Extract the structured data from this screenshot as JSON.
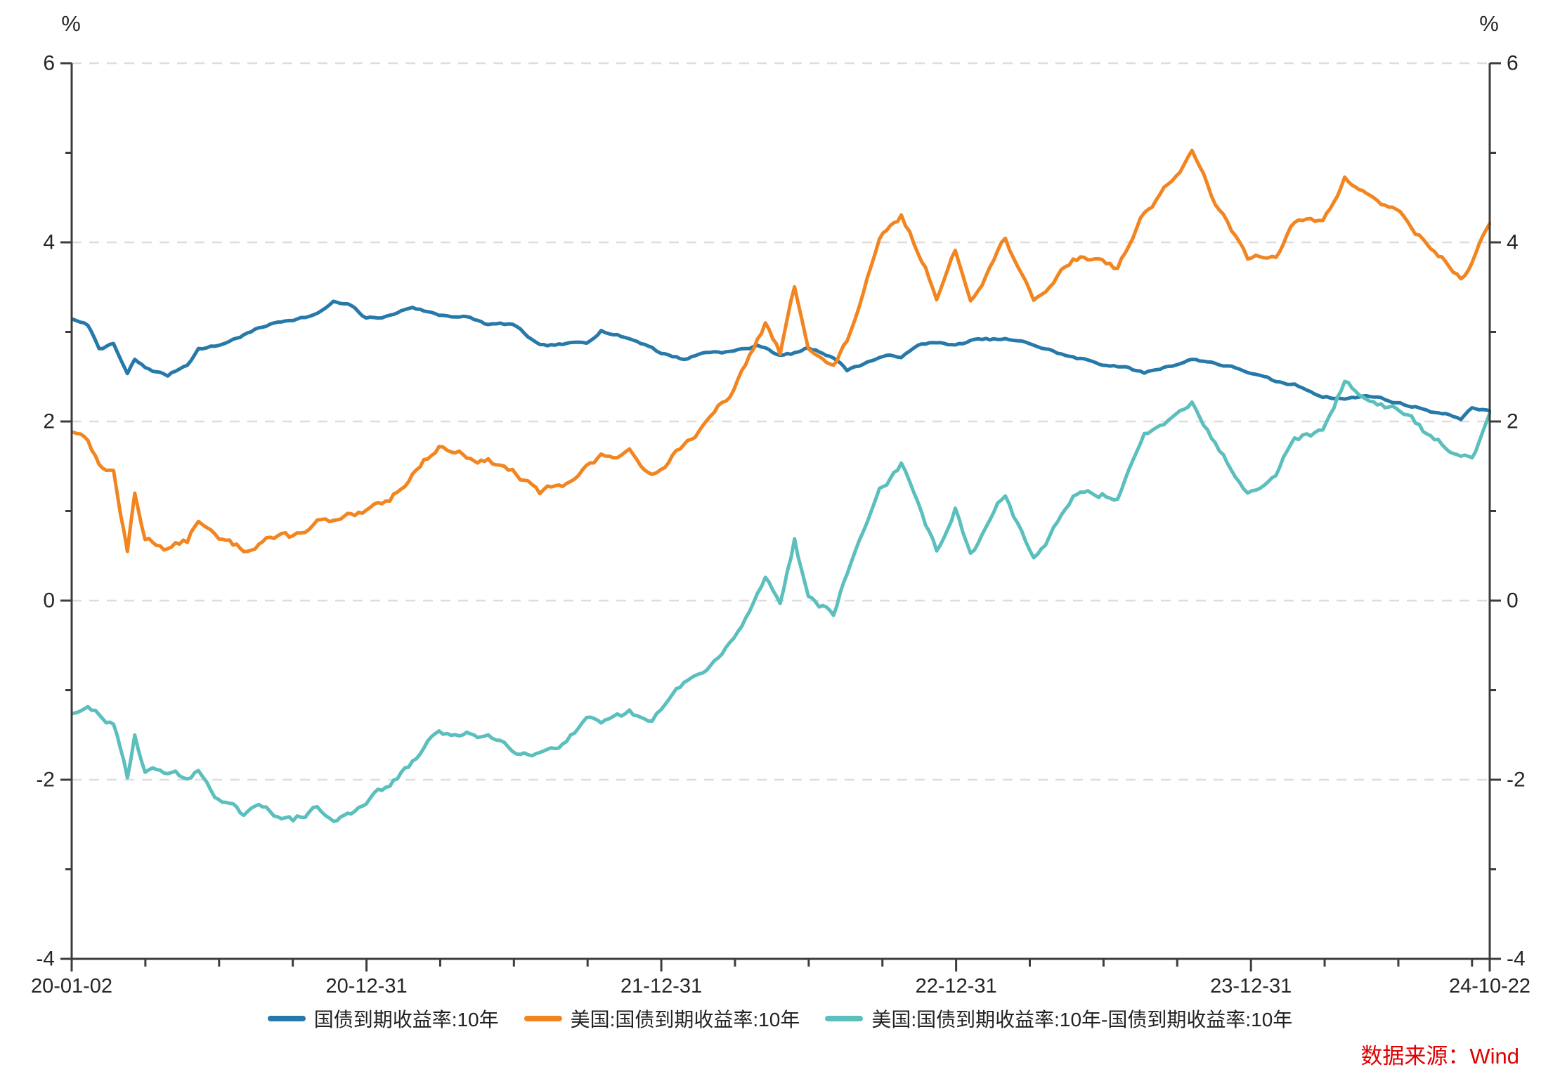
{
  "chart_data": {
    "type": "line",
    "title": "",
    "unit_label_left": "%",
    "unit_label_right": "%",
    "grid": "horizontal-dashed",
    "legend_position": "bottom-center",
    "x_axis": {
      "tick_labels": [
        "20-01-02",
        "20-12-31",
        "21-12-31",
        "22-12-31",
        "23-12-31",
        "24-10-22"
      ],
      "major_t": [
        0,
        1,
        2,
        3,
        4,
        4.81
      ],
      "minor_step_t": 0.25,
      "t_end": 4.81
    },
    "y_axis": {
      "max": 6,
      "min": -4,
      "major_ticks": [
        6,
        4,
        2,
        0,
        -2,
        -4
      ],
      "minor_ticks": [
        5,
        3,
        1,
        -1,
        -3
      ],
      "mirrored_right": true
    },
    "dates": [
      "20-01-02",
      "20-01-20",
      "20-02-03",
      "20-02-21",
      "20-03-09",
      "20-03-18",
      "20-03-31",
      "20-04-28",
      "20-05-22",
      "20-06-05",
      "20-06-30",
      "20-07-31",
      "20-08-28",
      "20-09-30",
      "20-10-30",
      "20-11-19",
      "20-12-11",
      "20-12-31",
      "21-01-29",
      "21-02-26",
      "21-03-31",
      "21-04-30",
      "21-05-31",
      "21-06-30",
      "21-08-03",
      "21-08-31",
      "21-09-30",
      "21-10-18",
      "21-11-22",
      "21-12-20",
      "21-12-31",
      "22-01-28",
      "22-02-25",
      "22-03-31",
      "22-04-29",
      "22-05-09",
      "22-05-27",
      "22-06-14",
      "22-07-01",
      "22-08-01",
      "22-08-18",
      "22-09-27",
      "22-10-24",
      "22-11-14",
      "22-12-07",
      "22-12-30",
      "23-01-18",
      "23-03-02",
      "23-04-06",
      "23-05-25",
      "23-06-30",
      "23-07-19",
      "23-08-21",
      "23-10-19",
      "23-11-17",
      "23-12-27",
      "24-01-31",
      "24-02-23",
      "24-03-29",
      "24-04-25",
      "24-05-31",
      "24-06-28",
      "24-07-31",
      "24-09-16",
      "24-09-30",
      "24-10-22"
    ],
    "t": [
      0.005,
      0.055,
      0.093,
      0.142,
      0.189,
      0.214,
      0.249,
      0.326,
      0.392,
      0.43,
      0.499,
      0.584,
      0.66,
      0.751,
      0.833,
      0.888,
      0.948,
      0.999,
      1.079,
      1.156,
      1.246,
      1.328,
      1.413,
      1.495,
      1.588,
      1.665,
      1.747,
      1.796,
      1.892,
      1.969,
      1.999,
      2.077,
      2.153,
      2.246,
      2.326,
      2.353,
      2.403,
      2.452,
      2.499,
      2.584,
      2.63,
      2.74,
      2.814,
      2.871,
      2.934,
      2.997,
      3.049,
      3.167,
      3.263,
      3.397,
      3.496,
      3.548,
      3.638,
      3.8,
      3.879,
      3.989,
      4.085,
      4.148,
      4.244,
      4.318,
      4.416,
      4.493,
      4.584,
      4.712,
      4.75,
      4.81
    ],
    "series": [
      {
        "name": "国债到期收益率:10年",
        "color": "#2679A9",
        "noise_sigma": 0.013,
        "values": [
          3.14,
          3.07,
          2.82,
          2.86,
          2.52,
          2.68,
          2.59,
          2.51,
          2.64,
          2.82,
          2.85,
          2.97,
          3.07,
          3.15,
          3.2,
          3.33,
          3.28,
          3.14,
          3.18,
          3.28,
          3.19,
          3.18,
          3.08,
          3.08,
          2.83,
          2.85,
          2.87,
          3.03,
          2.93,
          2.84,
          2.77,
          2.7,
          2.78,
          2.79,
          2.84,
          2.83,
          2.74,
          2.76,
          2.82,
          2.73,
          2.58,
          2.72,
          2.73,
          2.84,
          2.89,
          2.84,
          2.9,
          2.91,
          2.85,
          2.71,
          2.64,
          2.63,
          2.54,
          2.7,
          2.66,
          2.56,
          2.43,
          2.4,
          2.29,
          2.26,
          2.29,
          2.21,
          2.15,
          2.04,
          2.15,
          2.12
        ]
      },
      {
        "name": "美国:国债到期收益率:10年",
        "color": "#F28520",
        "noise_sigma": 0.035,
        "values": [
          1.88,
          1.84,
          1.53,
          1.46,
          0.54,
          1.18,
          0.7,
          0.61,
          0.66,
          0.91,
          0.66,
          0.55,
          0.74,
          0.69,
          0.88,
          0.85,
          0.9,
          0.93,
          1.11,
          1.44,
          1.74,
          1.65,
          1.58,
          1.45,
          1.18,
          1.3,
          1.52,
          1.6,
          1.63,
          1.42,
          1.52,
          1.78,
          1.97,
          2.32,
          2.89,
          3.08,
          2.74,
          3.47,
          2.88,
          2.6,
          2.88,
          3.97,
          4.25,
          3.88,
          3.42,
          3.88,
          3.37,
          4.08,
          3.3,
          3.82,
          3.84,
          3.74,
          4.34,
          4.99,
          4.44,
          3.79,
          3.91,
          4.25,
          4.2,
          4.7,
          4.5,
          4.36,
          4.03,
          3.62,
          3.78,
          4.21
        ]
      },
      {
        "name": "美国:国债到期收益率:10年-国债到期收益率:10年",
        "color": "#5BBFBE",
        "noise_sigma": 0.035,
        "derived": "us_minus_china",
        "values": [
          -1.26,
          -1.23,
          -1.29,
          -1.4,
          -1.98,
          -1.5,
          -1.89,
          -1.9,
          -1.98,
          -1.91,
          -2.19,
          -2.42,
          -2.33,
          -2.46,
          -2.32,
          -2.48,
          -2.38,
          -2.21,
          -2.07,
          -1.84,
          -1.45,
          -1.53,
          -1.5,
          -1.63,
          -1.65,
          -1.55,
          -1.35,
          -1.43,
          -1.3,
          -1.42,
          -1.25,
          -0.92,
          -0.81,
          -0.47,
          0.05,
          0.25,
          0.0,
          0.71,
          0.06,
          -0.13,
          0.3,
          1.25,
          1.52,
          1.04,
          0.53,
          1.04,
          0.47,
          1.17,
          0.45,
          1.11,
          1.2,
          1.11,
          1.8,
          2.29,
          1.78,
          1.23,
          1.48,
          1.85,
          1.91,
          2.44,
          2.21,
          2.15,
          1.88,
          1.58,
          1.63,
          2.09
        ]
      }
    ],
    "colors": {
      "axis": "#3C3C3C",
      "gridline": "#DDDDDD",
      "tick_label": "#262626",
      "source_note": "#E00000"
    }
  },
  "legend": {
    "items": [
      {
        "label": "国债到期收益率:10年",
        "color": "#2679A9"
      },
      {
        "label": "美国:国债到期收益率:10年",
        "color": "#F28520"
      },
      {
        "label": "美国:国债到期收益率:10年-国债到期收益率:10年",
        "color": "#5BBFBE"
      }
    ]
  },
  "footer": {
    "source_label": "数据来源：Wind",
    "color": "#E00000"
  }
}
